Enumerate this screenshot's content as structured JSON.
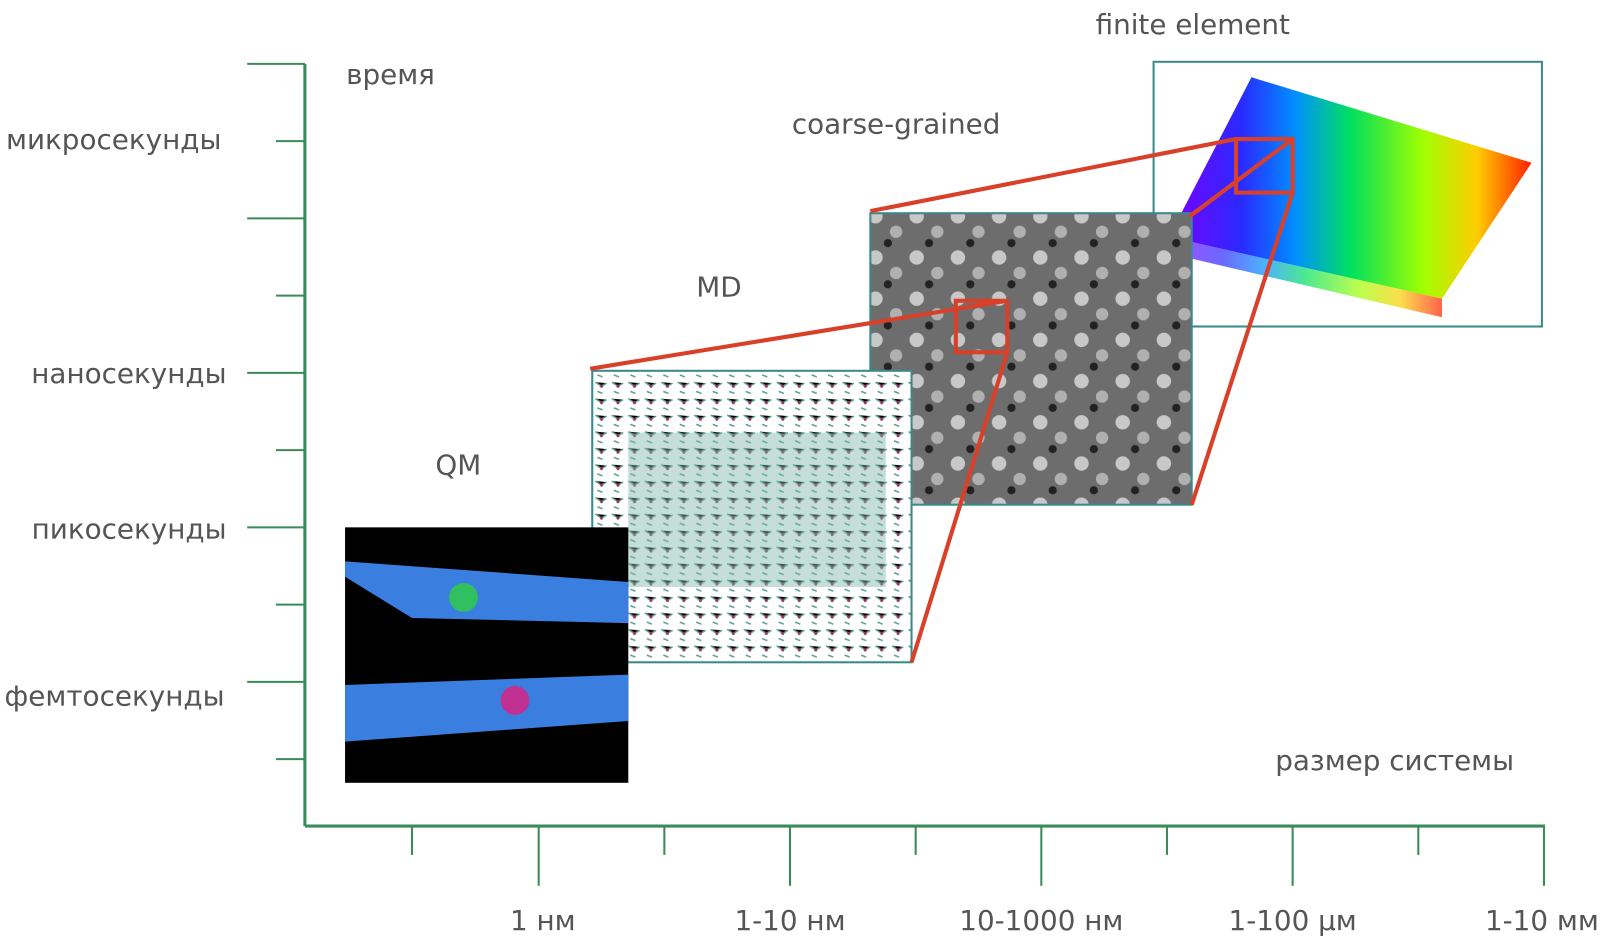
{
  "axes": {
    "y_title": "время",
    "x_title": "размер системы",
    "y_labels": [
      "микросекунды",
      "наносекунды",
      "пикосекунды",
      "фемтосекунды"
    ],
    "x_labels": [
      "1 нм",
      "1-10 нм",
      "10-1000 нм",
      "1-100 μм",
      "1-10 мм"
    ]
  },
  "methods": [
    "QM",
    "MD",
    "coarse-grained",
    "finite element"
  ]
}
